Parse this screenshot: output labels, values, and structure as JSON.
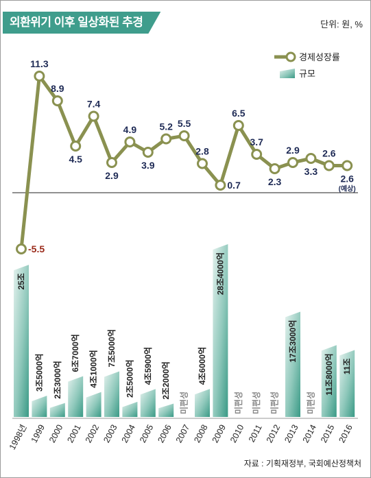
{
  "title": "외환위기 이후 일상화된 추경",
  "unit_note": "단위: 원, %",
  "source_note": "자료 : 기획재정부, 국회예산정책처",
  "colors": {
    "line": "#8a9150",
    "bar_light": "#d9ebe6",
    "bar_dark": "#3a9a86",
    "title_bg": "#3f9d8c",
    "negative_label": "#9a2a1a"
  },
  "chart_data": [
    {
      "type": "line",
      "series": [
        {
          "name": "경제성장률",
          "x": [
            "1998년",
            "1999",
            "2000",
            "2001",
            "2002",
            "2003",
            "2004",
            "2005",
            "2006",
            "2007",
            "2008",
            "2009",
            "2010",
            "2011",
            "2012",
            "2013",
            "2014",
            "2015",
            "2016"
          ],
          "values": [
            -5.5,
            11.3,
            8.9,
            4.5,
            7.4,
            2.9,
            4.9,
            3.9,
            5.2,
            5.5,
            2.8,
            0.7,
            6.5,
            3.7,
            2.3,
            2.9,
            3.3,
            2.6,
            2.6
          ],
          "labels": [
            "-5.5",
            "11.3",
            "8.9",
            "4.5",
            "7.4",
            "2.9",
            "4.9",
            "3.9",
            "5.2",
            "5.5",
            "2.8",
            "0.7",
            "6.5",
            "3.7",
            "2.3",
            "2.9",
            "3.3",
            "2.6",
            "2.6"
          ],
          "label_position": [
            "right",
            "above",
            "above",
            "below",
            "above",
            "below",
            "above",
            "below",
            "above",
            "above",
            "above",
            "right",
            "above",
            "above",
            "below",
            "above",
            "below",
            "above",
            "below"
          ]
        }
      ],
      "notes": {
        "last_point_note": "(예상)"
      },
      "ylim": [
        -7,
        12.5
      ],
      "baseline": 0
    },
    {
      "type": "bar",
      "series": [
        {
          "name": "규모",
          "categories": [
            "1998년",
            "1999",
            "2000",
            "2001",
            "2002",
            "2003",
            "2004",
            "2005",
            "2006",
            "2007",
            "2008",
            "2009",
            "2010",
            "2011",
            "2012",
            "2013",
            "2014",
            "2015",
            "2016"
          ],
          "values_jo": [
            25,
            3.5,
            2.3,
            6.7,
            4.1,
            7.5,
            2.5,
            4.59,
            2.2,
            0,
            4.6,
            28.4,
            0,
            0,
            0,
            17.3,
            0,
            11.8,
            11
          ],
          "labels": [
            "25조",
            "3조5000억",
            "2조3000억",
            "6조7000억",
            "4조1000억",
            "7조5000억",
            "2조5000억",
            "4조5900억",
            "2조2000억",
            "미편성",
            "4조6000억",
            "28조4000억",
            "미편성",
            "미편성",
            "미편성",
            "17조3000억",
            "미편성",
            "11조8000억",
            "11조"
          ]
        }
      ],
      "ylim": [
        0,
        30
      ]
    }
  ],
  "legend": [
    {
      "label": "경제성장률",
      "icon": "line-circle-icon"
    },
    {
      "label": "규모",
      "icon": "bar-swatch-icon"
    }
  ]
}
